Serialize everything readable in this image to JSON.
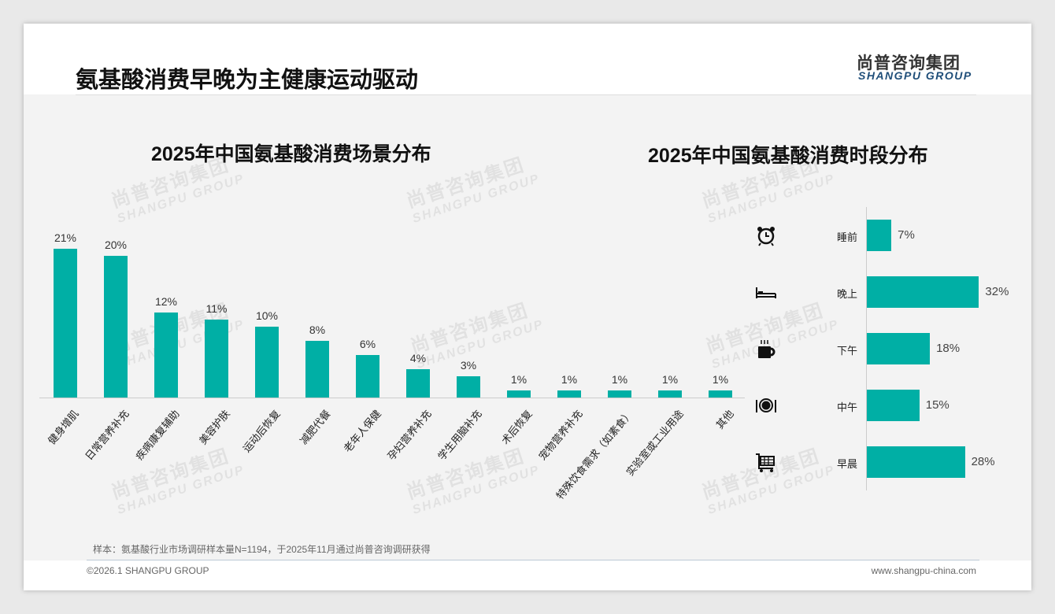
{
  "header": {
    "title": "氨基酸消费早晚为主健康运动驱动",
    "logo_cn": "尚普咨询集团",
    "logo_en": "SHANGPU GROUP"
  },
  "watermark": {
    "cn": "尚普咨询集团",
    "en": "SHANGPU GROUP"
  },
  "chart_data": [
    {
      "type": "bar",
      "title": "2025年中国氨基酸消费场景分布",
      "categories": [
        "健身增肌",
        "日常营养补充",
        "疾病康复辅助",
        "美容护肤",
        "运动后恢复",
        "减肥代餐",
        "老年人保健",
        "孕妇营养补充",
        "学生用脑补充",
        "术后恢复",
        "宠物营养补充",
        "特殊饮食需求（如素食）",
        "实验室或工业用途",
        "其他"
      ],
      "values": [
        21,
        20,
        12,
        11,
        10,
        8,
        6,
        4,
        3,
        1,
        1,
        1,
        1,
        1
      ],
      "labels": [
        "21%",
        "20%",
        "12%",
        "11%",
        "10%",
        "8%",
        "6%",
        "4%",
        "3%",
        "1%",
        "1%",
        "1%",
        "1%",
        "1%"
      ],
      "unit": "%",
      "color": "#00afa5"
    },
    {
      "type": "bar",
      "orientation": "horizontal",
      "title": "2025年中国氨基酸消费时段分布",
      "categories": [
        "睡前",
        "晚上",
        "下午",
        "中午",
        "早晨"
      ],
      "icons": [
        "alarm-clock-icon",
        "bed-icon",
        "coffee-cup-icon",
        "plate-cutlery-icon",
        "shopping-cart-icon"
      ],
      "values": [
        7,
        32,
        18,
        15,
        28
      ],
      "labels": [
        "7%",
        "32%",
        "18%",
        "15%",
        "28%"
      ],
      "unit": "%",
      "color": "#00afa5"
    }
  ],
  "footer": {
    "note": "样本：氨基酸行业市场调研样本量N=1194，于2025年11月通过尚普咨询调研获得",
    "copyright": "©2026.1 SHANGPU GROUP",
    "url": "www.shangpu-china.com"
  }
}
